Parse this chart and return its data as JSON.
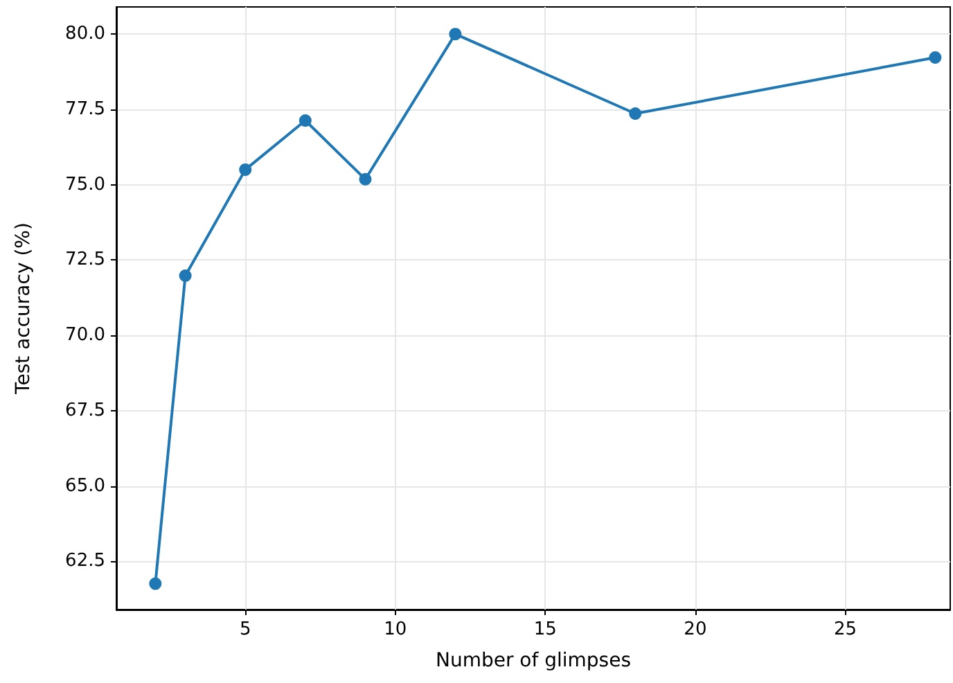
{
  "chart_data": {
    "type": "line",
    "xlabel": "Number of glimpses",
    "ylabel": "Test accuracy (%)",
    "x": [
      2,
      3,
      5,
      7,
      9,
      12,
      18,
      28
    ],
    "series": [
      {
        "color": "#1f77b4",
        "values": [
          61.76,
          71.98,
          75.5,
          77.13,
          75.18,
          80.0,
          77.36,
          79.22
        ]
      }
    ],
    "xlim": [
      0.7,
      28.5
    ],
    "xticks": [
      5,
      10,
      15,
      20,
      25
    ],
    "ylim": [
      60.9,
      80.9
    ],
    "yticks": [
      {
        "value": 62.5,
        "label": "62.5"
      },
      {
        "value": 65,
        "label": "65.0"
      },
      {
        "value": 67.5,
        "label": "67.5"
      },
      {
        "value": 70,
        "label": "70.0"
      },
      {
        "value": 72.5,
        "label": "72.5"
      },
      {
        "value": 75,
        "label": "75.0"
      },
      {
        "value": 77.5,
        "label": "77.5"
      },
      {
        "value": 80,
        "label": "80.0"
      }
    ],
    "grid": true,
    "marker": "circle",
    "line_style": "solid"
  }
}
